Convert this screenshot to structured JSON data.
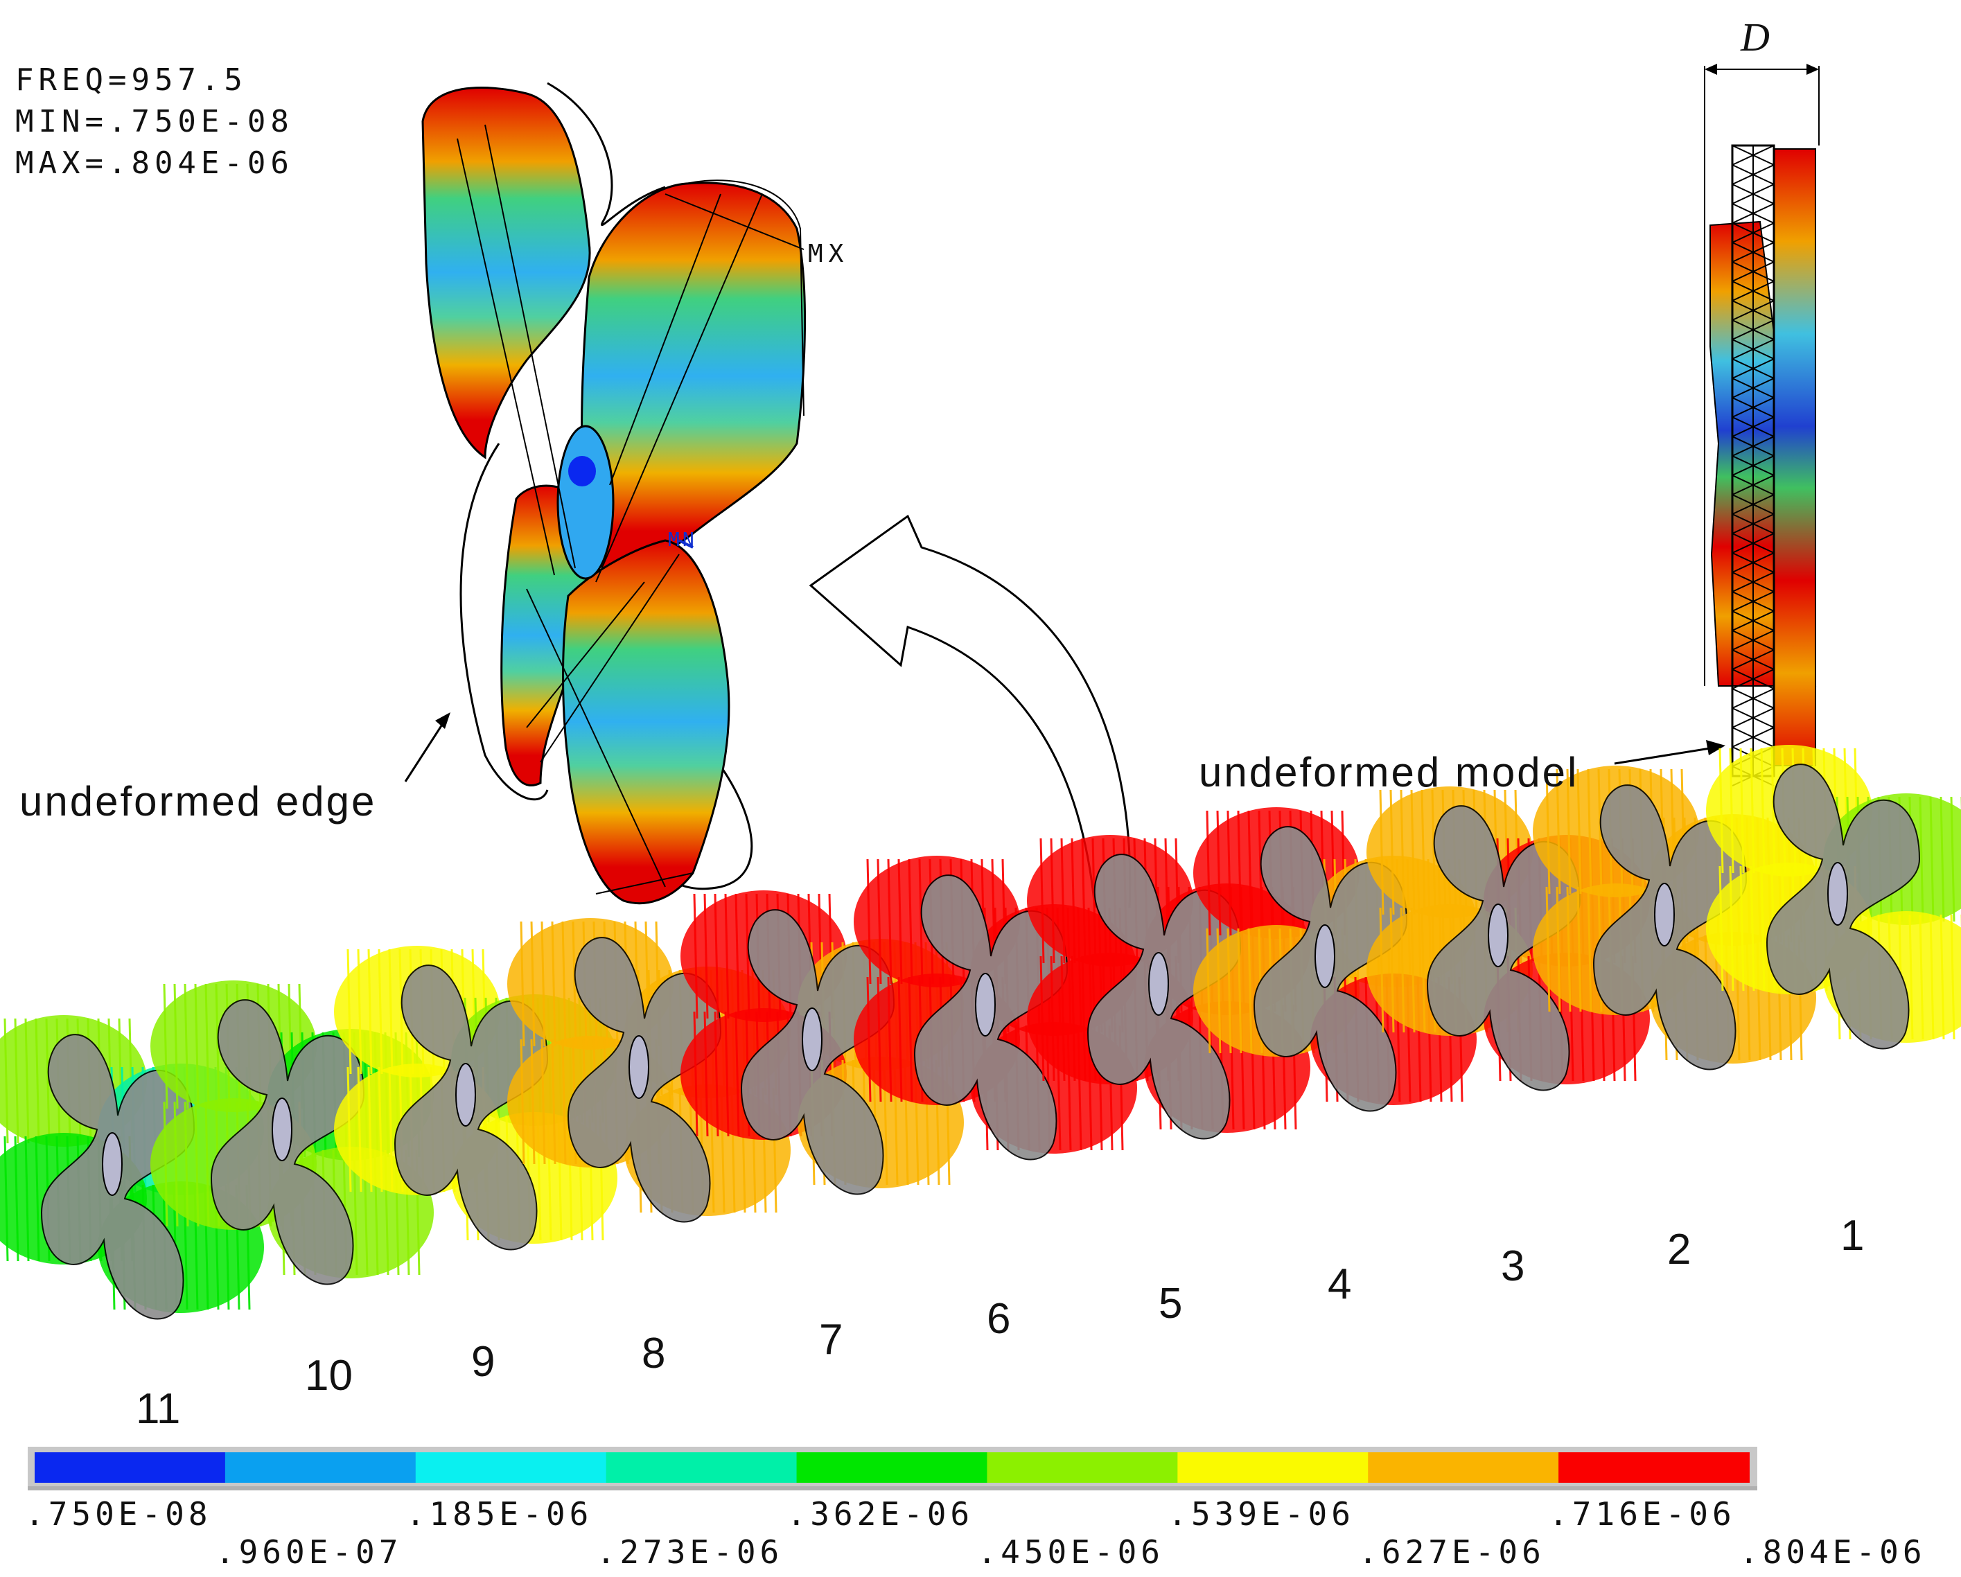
{
  "info": {
    "freq": "FREQ=957.5",
    "min": "MIN=.750E-08",
    "max": "MAX=.804E-06"
  },
  "markers": {
    "mx": "MX",
    "mn": "MN"
  },
  "dimension_label": "D",
  "annotations": {
    "undeformed_edge": "undeformed edge",
    "undeformed_model": "undeformed model"
  },
  "resonator_numbers": [
    "11",
    "10",
    "9",
    "8",
    "7",
    "6",
    "5",
    "4",
    "3",
    "2",
    "1"
  ],
  "colorbar": {
    "colors": [
      "#0a28f0",
      "#0aa0f0",
      "#0af0f0",
      "#00f0a8",
      "#00e600",
      "#8cf000",
      "#fafa00",
      "#fab400",
      "#fa0000"
    ],
    "ticks_top": [
      ".750E-08",
      ".185E-06",
      ".362E-06",
      ".539E-06",
      ".716E-06"
    ],
    "ticks_bottom": [
      ".960E-07",
      ".273E-06",
      ".450E-06",
      ".627E-06",
      ".804E-06"
    ]
  }
}
